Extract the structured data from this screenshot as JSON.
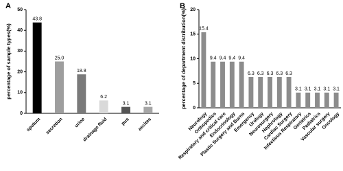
{
  "chart_data": [
    {
      "type": "bar",
      "panel_label": "A",
      "ylabel": "percentage of sample types(%)",
      "categories": [
        "sputum",
        "secretion",
        "urine",
        "drainage fluid",
        "pus",
        "ascites"
      ],
      "values": [
        43.8,
        25.0,
        18.8,
        6.2,
        3.1,
        3.1
      ],
      "value_labels": [
        "43.8",
        "25.0",
        "18.8",
        "6.2",
        "3.1",
        "3.1"
      ],
      "colors": [
        "#000000",
        "#9e9e9e",
        "#7a7a7a",
        "#d9d9d9",
        "#555555",
        "#a6a6a6"
      ],
      "ylim": [
        0,
        50
      ],
      "yticks": [
        0,
        10,
        20,
        30,
        40,
        50
      ]
    },
    {
      "type": "bar",
      "panel_label": "B",
      "ylabel": "percentage of department distribution(%)",
      "categories": [
        "Neurology",
        "Orthopedics",
        "Respiratory and critical care",
        "Endocrinology",
        "Plastic Surgery and Burns",
        "Emergency",
        "Urology",
        "Neurosurgery",
        "Nephrology",
        "Cardiac Surgery",
        "Infectious Respiratory",
        "Geriatrics",
        "Pediatrics",
        "Vascular surgery",
        "Oncology"
      ],
      "values": [
        15.4,
        9.4,
        9.4,
        9.4,
        9.4,
        6.3,
        6.3,
        6.3,
        6.3,
        6.3,
        3.1,
        3.1,
        3.1,
        3.1,
        3.1
      ],
      "color": "#8c8c8c",
      "ylim": [
        0,
        20
      ],
      "yticks": [
        0,
        5,
        10,
        15,
        20
      ]
    }
  ]
}
